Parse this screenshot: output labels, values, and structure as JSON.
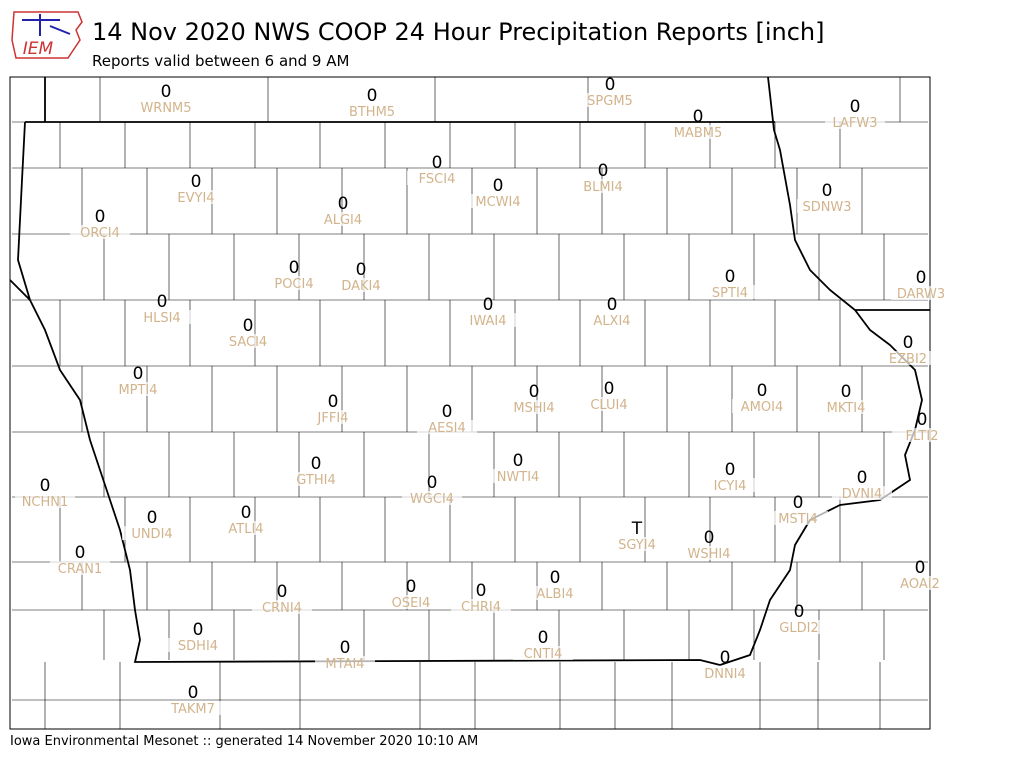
{
  "logo": "IEM",
  "title": "14 Nov 2020 NWS COOP 24 Hour Precipitation Reports [inch]",
  "subtitle": "Reports valid between 6 and 9 AM",
  "footer": "Iowa Environmental Mesonet :: generated 14 November 2020 10:10 AM",
  "stations": [
    {
      "id": "WRNM5",
      "value": "0"
    },
    {
      "id": "BTHM5",
      "value": "0"
    },
    {
      "id": "SPGM5",
      "value": "0"
    },
    {
      "id": "MABM5",
      "value": "0"
    },
    {
      "id": "LAFW3",
      "value": "0"
    },
    {
      "id": "FSCI4",
      "value": "0"
    },
    {
      "id": "BLMI4",
      "value": "0"
    },
    {
      "id": "EVYI4",
      "value": "0"
    },
    {
      "id": "MCWI4",
      "value": "0"
    },
    {
      "id": "SDNW3",
      "value": "0"
    },
    {
      "id": "ALGI4",
      "value": "0"
    },
    {
      "id": "ORCI4",
      "value": "0"
    },
    {
      "id": "POCI4",
      "value": "0"
    },
    {
      "id": "DAKI4",
      "value": "0"
    },
    {
      "id": "SPTI4",
      "value": "0"
    },
    {
      "id": "DARW3",
      "value": "0"
    },
    {
      "id": "HLSI4",
      "value": "0"
    },
    {
      "id": "IWAI4",
      "value": "0"
    },
    {
      "id": "ALXI4",
      "value": "0"
    },
    {
      "id": "SACI4",
      "value": "0"
    },
    {
      "id": "EZBI2",
      "value": "0"
    },
    {
      "id": "MPTI4",
      "value": "0"
    },
    {
      "id": "CLUI4",
      "value": "0"
    },
    {
      "id": "AMOI4",
      "value": "0"
    },
    {
      "id": "MSHI4",
      "value": "0"
    },
    {
      "id": "MKTI4",
      "value": "0"
    },
    {
      "id": "JFFI4",
      "value": "0"
    },
    {
      "id": "AESI4",
      "value": "0"
    },
    {
      "id": "FLTI2",
      "value": "0"
    },
    {
      "id": "NWTI4",
      "value": "0"
    },
    {
      "id": "GTHI4",
      "value": "0"
    },
    {
      "id": "ICYI4",
      "value": "0"
    },
    {
      "id": "DVNI4",
      "value": "0"
    },
    {
      "id": "WGCI4",
      "value": "0"
    },
    {
      "id": "NCHN1",
      "value": "0"
    },
    {
      "id": "MSTI4",
      "value": "0"
    },
    {
      "id": "ATLI4",
      "value": "0"
    },
    {
      "id": "UNDI4",
      "value": "0"
    },
    {
      "id": "SGYI4",
      "value": "T"
    },
    {
      "id": "WSHI4",
      "value": "0"
    },
    {
      "id": "CRAN1",
      "value": "0"
    },
    {
      "id": "AOAI2",
      "value": "0"
    },
    {
      "id": "ALBI4",
      "value": "0"
    },
    {
      "id": "OSEI4",
      "value": "0"
    },
    {
      "id": "CRNI4",
      "value": "0"
    },
    {
      "id": "CHRI4",
      "value": "0"
    },
    {
      "id": "GLDI2",
      "value": "0"
    },
    {
      "id": "SDHI4",
      "value": "0"
    },
    {
      "id": "CNTI4",
      "value": "0"
    },
    {
      "id": "MTAI4",
      "value": "0"
    },
    {
      "id": "DNNI4",
      "value": "0"
    },
    {
      "id": "TAKM7",
      "value": "0"
    }
  ]
}
